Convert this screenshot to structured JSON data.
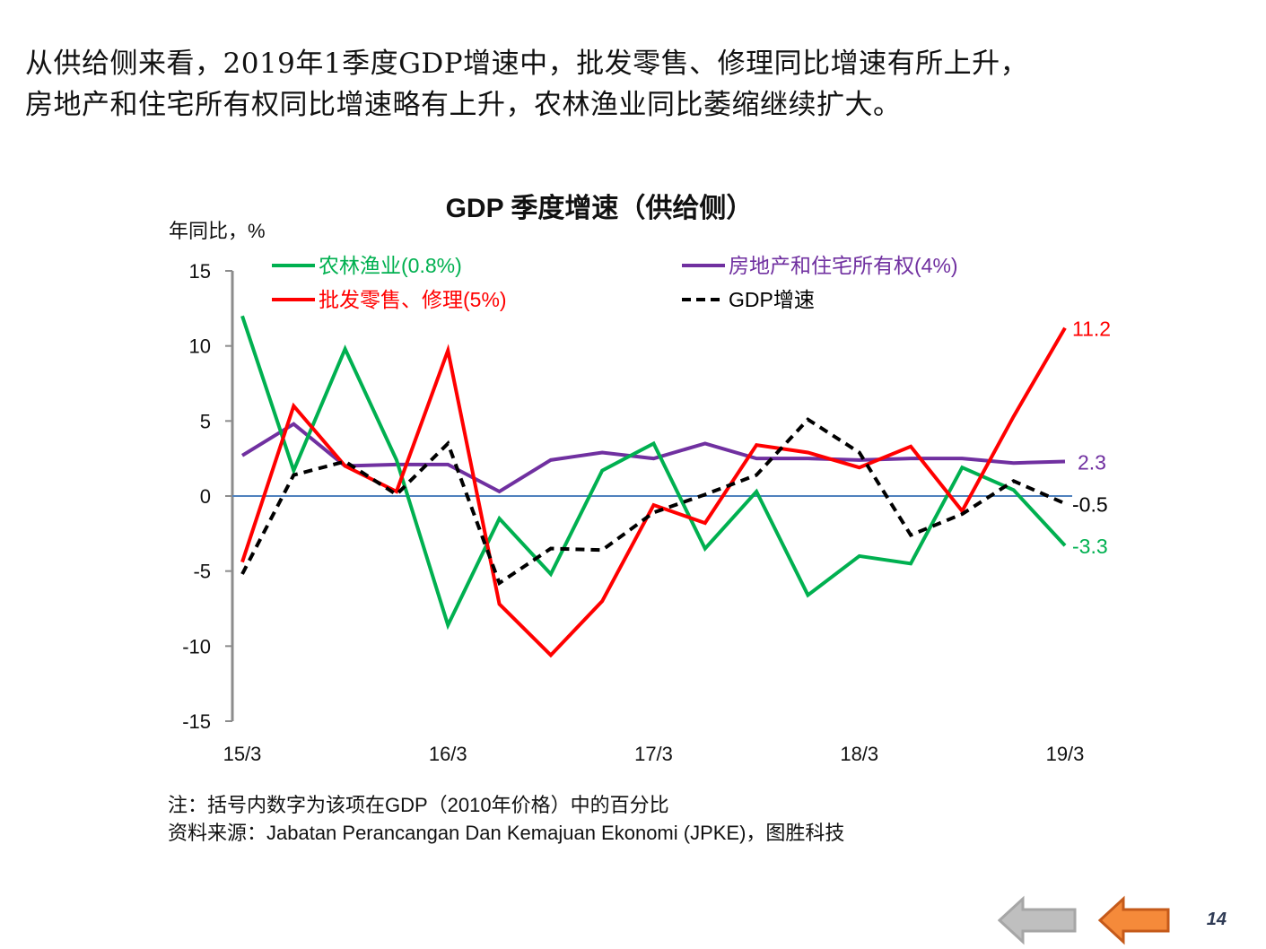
{
  "headline": {
    "line1": "从供给侧来看，2019年1季度GDP增速中，批发零售、修理同比增速有所上升，",
    "line2": "房地产和住宅所有权同比增速略有上升，农林渔业同比萎缩继续扩大。"
  },
  "chart_data": {
    "type": "line",
    "title": "GDP 季度增速（供给侧）",
    "ylabel": "年同比，%",
    "xlabel": "",
    "ylim": [
      -15,
      15
    ],
    "yticks": [
      "15",
      "10",
      "5",
      "0",
      "-5",
      "-10",
      "-15"
    ],
    "ytick_values": [
      15,
      10,
      5,
      0,
      -5,
      -10,
      -15
    ],
    "x": [
      "15/3",
      "15/6",
      "15/9",
      "15/12",
      "16/3",
      "16/6",
      "16/9",
      "16/12",
      "17/3",
      "17/6",
      "17/9",
      "17/12",
      "18/3",
      "18/6",
      "18/9",
      "18/12",
      "19/3"
    ],
    "xtick_labels": [
      "15/3",
      "16/3",
      "17/3",
      "18/3",
      "19/3"
    ],
    "xtick_indices": [
      0,
      4,
      8,
      12,
      16
    ],
    "grid": false,
    "zero_line": true,
    "legend_position": "top",
    "series": [
      {
        "name": "农林渔业(0.8%)",
        "color": "#00b050",
        "style": "solid",
        "values": [
          12.0,
          1.7,
          9.8,
          2.4,
          -8.6,
          -1.5,
          -5.2,
          1.7,
          3.5,
          -3.5,
          0.3,
          -6.6,
          -4.0,
          -4.5,
          1.9,
          0.4,
          -3.3
        ],
        "end_label": "-3.3"
      },
      {
        "name": "房地产和住宅所有权(4%)",
        "color": "#7030a0",
        "style": "solid",
        "values": [
          2.7,
          4.8,
          2.0,
          2.1,
          2.1,
          0.3,
          2.4,
          2.9,
          2.5,
          3.5,
          2.5,
          2.5,
          2.4,
          2.5,
          2.5,
          2.2,
          2.3
        ],
        "end_label": "2.3"
      },
      {
        "name": "批发零售、修理(5%)",
        "color": "#ff0000",
        "style": "solid",
        "values": [
          -4.4,
          6.0,
          2.0,
          0.3,
          9.7,
          -7.2,
          -10.6,
          -7.0,
          -0.6,
          -1.8,
          3.4,
          2.9,
          1.9,
          3.3,
          -1.0,
          5.3,
          11.2
        ],
        "end_label": "11.2"
      },
      {
        "name": "GDP增速",
        "color": "#000000",
        "style": "dashed",
        "values": [
          -5.2,
          1.4,
          2.3,
          0.1,
          3.5,
          -5.8,
          -3.5,
          -3.6,
          -1.1,
          0.1,
          1.4,
          5.1,
          2.9,
          -2.6,
          -1.2,
          1.0,
          -0.5
        ],
        "end_label": "-0.5"
      }
    ]
  },
  "notes": {
    "note": "注：括号内数字为该项在GDP（2010年价格）中的百分比",
    "source": "资料来源：Jabatan Perancangan Dan Kemajuan Ekonomi (JPKE)，图胜科技"
  },
  "footer": {
    "page_number": "14",
    "colors": {
      "prev_arrow": "#bfbfbf",
      "back_arrow": "#f58a3a"
    }
  }
}
